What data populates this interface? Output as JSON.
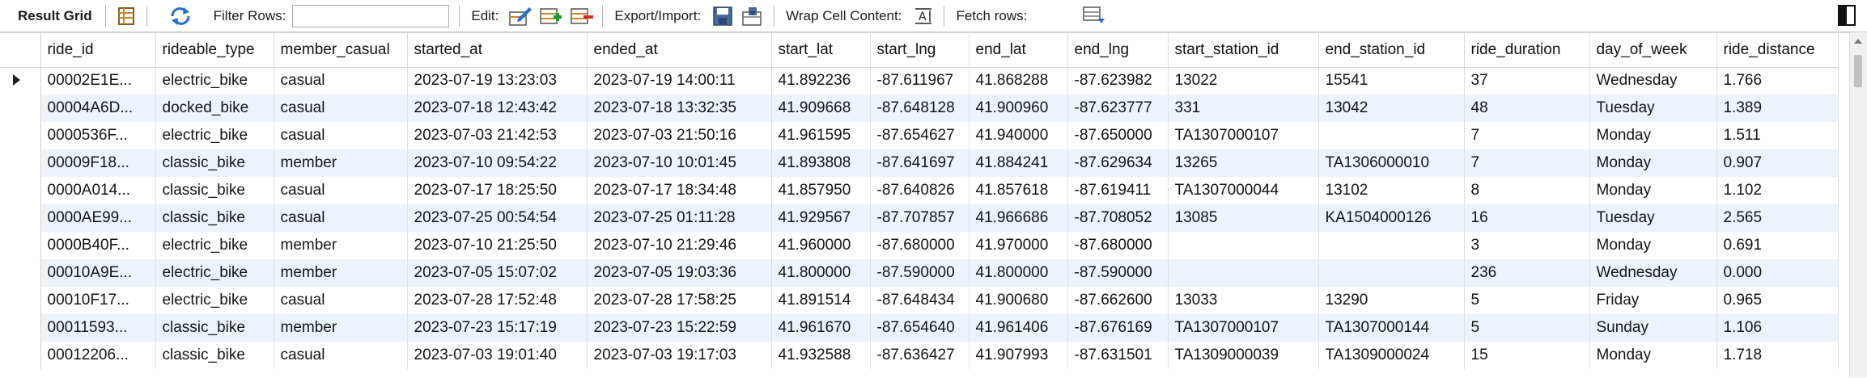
{
  "toolbar": {
    "result_grid_label": "Result Grid",
    "filter_rows_label": "Filter Rows:",
    "filter_rows_value": "",
    "edit_label": "Edit:",
    "export_import_label": "Export/Import:",
    "wrap_cell_label": "Wrap Cell Content:",
    "fetch_rows_label": "Fetch rows:",
    "icons": [
      "grid-layout-icon",
      "refresh-icon",
      "edit-row-icon",
      "insert-row-icon",
      "delete-row-icon",
      "export-icon",
      "import-icon",
      "wrap-text-icon",
      "fetch-rows-icon",
      "panel-toggle-icon"
    ]
  },
  "table": {
    "columns": [
      "ride_id",
      "rideable_type",
      "member_casual",
      "started_at",
      "ended_at",
      "start_lat",
      "start_lng",
      "end_lat",
      "end_lng",
      "start_station_id",
      "end_station_id",
      "ride_duration",
      "day_of_week",
      "ride_distance"
    ],
    "rows": [
      [
        "00002E1E...",
        "electric_bike",
        "casual",
        "2023-07-19 13:23:03",
        "2023-07-19 14:00:11",
        "41.892236",
        "-87.611967",
        "41.868288",
        "-87.623982",
        "13022",
        "15541",
        "37",
        "Wednesday",
        "1.766"
      ],
      [
        "00004A6D...",
        "docked_bike",
        "casual",
        "2023-07-18 12:43:42",
        "2023-07-18 13:32:35",
        "41.909668",
        "-87.648128",
        "41.900960",
        "-87.623777",
        "331",
        "13042",
        "48",
        "Tuesday",
        "1.389"
      ],
      [
        "0000536F...",
        "electric_bike",
        "casual",
        "2023-07-03 21:42:53",
        "2023-07-03 21:50:16",
        "41.961595",
        "-87.654627",
        "41.940000",
        "-87.650000",
        "TA1307000107",
        "",
        "7",
        "Monday",
        "1.511"
      ],
      [
        "00009F18...",
        "classic_bike",
        "member",
        "2023-07-10 09:54:22",
        "2023-07-10 10:01:45",
        "41.893808",
        "-87.641697",
        "41.884241",
        "-87.629634",
        "13265",
        "TA1306000010",
        "7",
        "Monday",
        "0.907"
      ],
      [
        "0000A014...",
        "classic_bike",
        "casual",
        "2023-07-17 18:25:50",
        "2023-07-17 18:34:48",
        "41.857950",
        "-87.640826",
        "41.857618",
        "-87.619411",
        "TA1307000044",
        "13102",
        "8",
        "Monday",
        "1.102"
      ],
      [
        "0000AE99...",
        "classic_bike",
        "casual",
        "2023-07-25 00:54:54",
        "2023-07-25 01:11:28",
        "41.929567",
        "-87.707857",
        "41.966686",
        "-87.708052",
        "13085",
        "KA1504000126",
        "16",
        "Tuesday",
        "2.565"
      ],
      [
        "0000B40F...",
        "electric_bike",
        "member",
        "2023-07-10 21:25:50",
        "2023-07-10 21:29:46",
        "41.960000",
        "-87.680000",
        "41.970000",
        "-87.680000",
        "",
        "",
        "3",
        "Monday",
        "0.691"
      ],
      [
        "00010A9E...",
        "electric_bike",
        "member",
        "2023-07-05 15:07:02",
        "2023-07-05 19:03:36",
        "41.800000",
        "-87.590000",
        "41.800000",
        "-87.590000",
        "",
        "",
        "236",
        "Wednesday",
        "0.000"
      ],
      [
        "00010F17...",
        "electric_bike",
        "casual",
        "2023-07-28 17:52:48",
        "2023-07-28 17:58:25",
        "41.891514",
        "-87.648434",
        "41.900680",
        "-87.662600",
        "13033",
        "13290",
        "5",
        "Friday",
        "0.965"
      ],
      [
        "00011593...",
        "classic_bike",
        "member",
        "2023-07-23 15:17:19",
        "2023-07-23 15:22:59",
        "41.961670",
        "-87.654640",
        "41.961406",
        "-87.676169",
        "TA1307000107",
        "TA1307000144",
        "5",
        "Sunday",
        "1.106"
      ],
      [
        "00012206...",
        "classic_bike",
        "casual",
        "2023-07-03 19:01:40",
        "2023-07-03 19:17:03",
        "41.932588",
        "-87.636427",
        "41.907993",
        "-87.631501",
        "TA1309000039",
        "TA1309000024",
        "15",
        "Monday",
        "1.718"
      ]
    ]
  },
  "colors": {
    "row_alt": "#edf3fb",
    "row": "#ffffff",
    "toolbar_bg": "#ffffff",
    "accent_icon": "#2a6fc9"
  }
}
